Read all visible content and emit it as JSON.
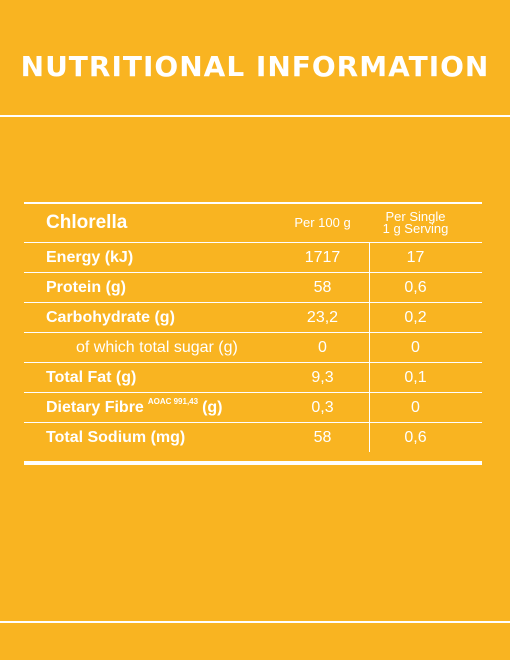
{
  "title": "NUTRITIONAL INFORMATION",
  "table": {
    "product": "Chlorella",
    "col_per_100g": "Per 100 g",
    "col_per_serving_line1": "Per Single",
    "col_per_serving_line2": "1 g Serving",
    "rows": [
      {
        "label": "Energy (kJ)",
        "per_100g": "1717",
        "per_serving": "17"
      },
      {
        "label": "Protein (g)",
        "per_100g": "58",
        "per_serving": "0,6"
      },
      {
        "label": "Carbohydrate (g)",
        "per_100g": "23,2",
        "per_serving": "0,2"
      },
      {
        "label": "of which total sugar (g)",
        "per_100g": "0",
        "per_serving": "0"
      },
      {
        "label": "Total Fat (g)",
        "per_100g": "9,3",
        "per_serving": "0,1"
      },
      {
        "label_main": "Dietary Fibre",
        "label_note": "AOAC 991,43",
        "label_unit": "(g)",
        "per_100g": "0,3",
        "per_serving": "0"
      },
      {
        "label": "Total Sodium (mg)",
        "per_100g": "58",
        "per_serving": "0,6"
      }
    ]
  }
}
